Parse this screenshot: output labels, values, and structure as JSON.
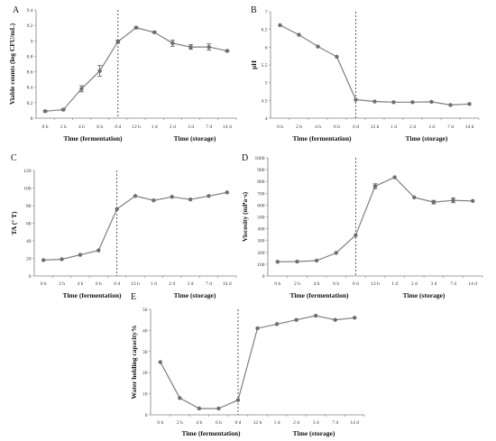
{
  "figure": {
    "chart_data": [
      {
        "panel": "A",
        "type": "line",
        "categories": [
          "0 h",
          "2 h",
          "4 h",
          "6 h",
          "0 d",
          "12 h",
          "1 d",
          "2 d",
          "3 d",
          "7 d",
          "14 d"
        ],
        "values": [
          8.09,
          8.11,
          8.38,
          8.61,
          8.99,
          9.17,
          9.11,
          8.97,
          8.92,
          8.92,
          8.87
        ],
        "errors": [
          0.01,
          0.01,
          0.04,
          0.07,
          0.02,
          0.01,
          0.01,
          0.04,
          0.03,
          0.04,
          0.01
        ],
        "ylabel": "Viable counts (log CFU/mL)",
        "xlabel_fermentation": "Time (fermentation)",
        "xlabel_storage": "Time (storage)",
        "ylim": [
          8,
          9.4
        ],
        "yticks": [
          "8",
          "8.2",
          "8.4",
          "8.6",
          "8.8",
          "9",
          "9.2",
          "9.4"
        ]
      },
      {
        "panel": "B",
        "type": "line",
        "categories": [
          "0 h",
          "2 h",
          "4 h",
          "6 h",
          "0 d",
          "12 h",
          "1 d",
          "2 d",
          "3 d",
          "7 d",
          "14 d"
        ],
        "values": [
          6.62,
          6.35,
          6.02,
          5.73,
          4.52,
          4.47,
          4.45,
          4.45,
          4.46,
          4.37,
          4.4
        ],
        "errors": [
          0,
          0,
          0,
          0,
          0,
          0,
          0,
          0,
          0,
          0,
          0
        ],
        "ylabel": "pH",
        "xlabel_fermentation": "Time (fermentation)",
        "xlabel_storage": "Time (storage)",
        "ylim": [
          4,
          7
        ],
        "yticks": [
          "4",
          "4.5",
          "5",
          "5.5",
          "6",
          "6.5",
          "7"
        ]
      },
      {
        "panel": "C",
        "type": "line",
        "categories": [
          "0 h",
          "2 h",
          "4 h",
          "6 h",
          "0 d",
          "12 h",
          "1 d",
          "2 d",
          "3 d",
          "7 d",
          "14 d"
        ],
        "values": [
          18,
          19,
          24,
          29,
          76,
          91,
          86,
          90,
          87,
          91,
          95
        ],
        "errors": [
          0,
          0,
          0,
          0,
          0,
          0,
          0,
          0,
          0,
          0,
          0
        ],
        "ylabel": "TA (° T)",
        "xlabel_fermentation": "Time (fermentation)",
        "xlabel_storage": "Time (storage)",
        "ylim": [
          0,
          120
        ],
        "yticks": [
          "0",
          "20",
          "40",
          "60",
          "80",
          "100",
          "120"
        ]
      },
      {
        "panel": "D",
        "type": "line",
        "categories": [
          "0 h",
          "2 h",
          "4 h",
          "6 h",
          "0 d",
          "12 h",
          "1 d",
          "2 d",
          "3 d",
          "7 d",
          "14 d"
        ],
        "values": [
          120,
          122,
          130,
          195,
          345,
          760,
          835,
          665,
          625,
          640,
          635
        ],
        "errors": [
          0,
          0,
          0,
          0,
          0,
          20,
          0,
          0,
          15,
          20,
          0
        ],
        "ylabel": "Viscosity (mPa·s)",
        "xlabel_fermentation": "Time (fermentation)",
        "xlabel_storage": "Time (storage)",
        "ylim": [
          0,
          1000
        ],
        "yticks": [
          "0",
          "100",
          "200",
          "300",
          "400",
          "500",
          "600",
          "700",
          "800",
          "900",
          "1000"
        ]
      },
      {
        "panel": "E",
        "type": "line",
        "categories": [
          "0 h",
          "2 h",
          "4 h",
          "6 h",
          "0 d",
          "12 h",
          "1 d",
          "2 d",
          "3 d",
          "7 d",
          "14 d"
        ],
        "values": [
          25,
          8,
          3,
          3,
          7,
          41,
          43,
          45,
          47,
          45,
          46
        ],
        "errors": [
          0,
          0,
          0,
          0,
          0,
          0,
          0,
          0,
          0,
          0,
          0
        ],
        "ylabel": "Water holding capacity%",
        "xlabel_fermentation": "Time (fermentation)",
        "xlabel_storage": "Time (storage)",
        "ylim": [
          0,
          50
        ],
        "yticks": [
          "0",
          "10",
          "20",
          "30",
          "40",
          "50"
        ]
      }
    ]
  },
  "colors": {
    "line": "#7f7f7f",
    "marker": "#6e6e6e",
    "axis": "#808080",
    "divider": "#333333",
    "text": "#111111"
  }
}
